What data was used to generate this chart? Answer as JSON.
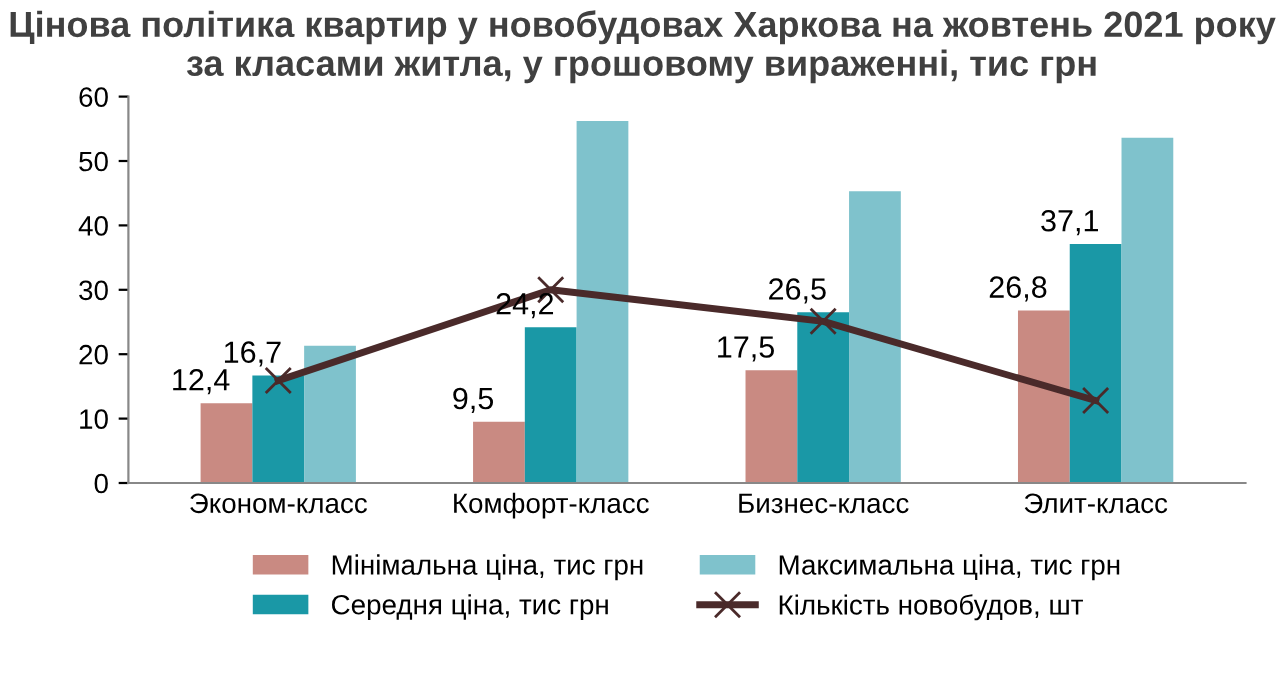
{
  "chart_data": {
    "type": "bar",
    "title": "Цінова політика квартир у новобудовах Харкова на жовтень 2021 року\nза класами житла, у грошовому вираженні, тис грн",
    "categories": [
      "Эконом-класс",
      "Комфорт-класс",
      "Бизнес-класс",
      "Элит-класс"
    ],
    "series": [
      {
        "name": "Мінімальна ціна, тис грн",
        "color": "#c98a82",
        "values": [
          12.4,
          9.5,
          17.5,
          26.8
        ],
        "value_labels": [
          "12,4",
          "9,5",
          "17,5",
          "26,8"
        ]
      },
      {
        "name": "Середня ціна, тис грн",
        "color": "#1a98a6",
        "values": [
          16.7,
          24.2,
          26.5,
          37.1
        ],
        "value_labels": [
          "16,7",
          "24,2",
          "26,5",
          "37,1"
        ]
      },
      {
        "name": "Максимальна ціна, тис грн",
        "color": "#7fc2cc",
        "values": [
          21.3,
          56.2,
          45.3,
          53.6
        ]
      },
      {
        "name": "Кількість новобудов, шт",
        "type": "line",
        "color": "#4a2a2a",
        "values": [
          15.9,
          30.0,
          25.1,
          12.8
        ],
        "marker": "cross"
      }
    ],
    "ylim": [
      0,
      60
    ],
    "yticks": [
      0,
      10,
      20,
      30,
      40,
      50,
      60
    ],
    "grid": false,
    "legend": "bottom"
  }
}
